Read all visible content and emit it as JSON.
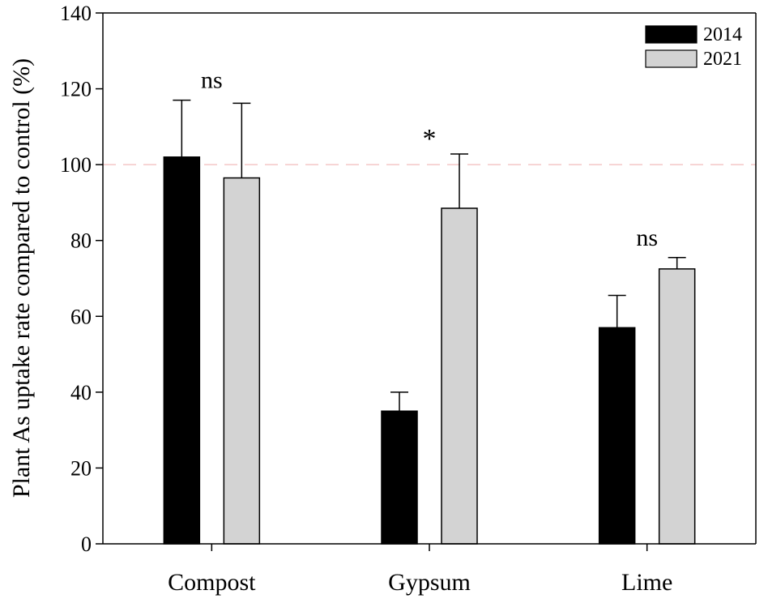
{
  "chart_data": {
    "type": "bar",
    "ylabel": "Plant As uptake rate compared to control (%)",
    "xlabel": "",
    "ylim": [
      0,
      140
    ],
    "yticks": [
      0,
      20,
      40,
      60,
      80,
      100,
      120,
      140
    ],
    "categories": [
      "Compost",
      "Gypsum",
      "Lime"
    ],
    "series": [
      {
        "name": "2014",
        "color": "#000000",
        "values": [
          102,
          35,
          57
        ],
        "errors": [
          15,
          5,
          8.5
        ]
      },
      {
        "name": "2021",
        "color": "#d3d3d3",
        "values": [
          96.5,
          88.5,
          72.5
        ],
        "errors": [
          19.7,
          14.3,
          3
        ]
      }
    ],
    "annotations": [
      {
        "category": "Compost",
        "text": "ns"
      },
      {
        "category": "Gypsum",
        "text": "*"
      },
      {
        "category": "Lime",
        "text": "ns"
      }
    ],
    "reference_line": {
      "value": 100,
      "color": "#f4c7c7",
      "style": "dashed"
    },
    "legend_position": "top-right",
    "grid": false
  }
}
